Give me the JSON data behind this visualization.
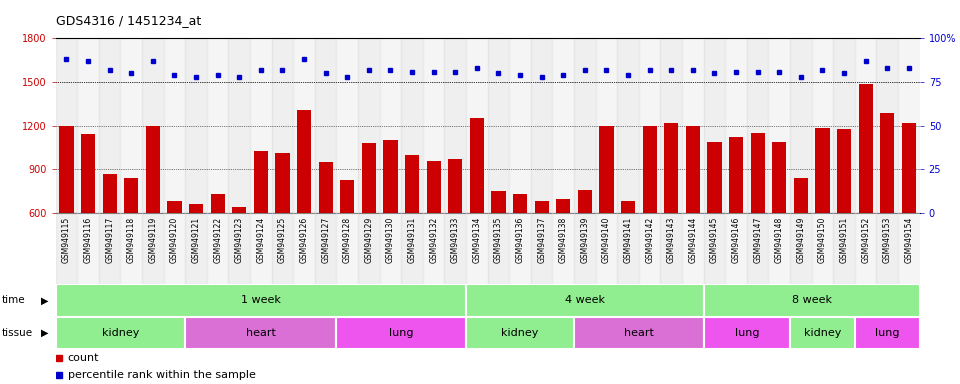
{
  "title": "GDS4316 / 1451234_at",
  "samples": [
    "GSM949115",
    "GSM949116",
    "GSM949117",
    "GSM949118",
    "GSM949119",
    "GSM949120",
    "GSM949121",
    "GSM949122",
    "GSM949123",
    "GSM949124",
    "GSM949125",
    "GSM949126",
    "GSM949127",
    "GSM949128",
    "GSM949129",
    "GSM949130",
    "GSM949131",
    "GSM949132",
    "GSM949133",
    "GSM949134",
    "GSM949135",
    "GSM949136",
    "GSM949137",
    "GSM949138",
    "GSM949139",
    "GSM949140",
    "GSM949141",
    "GSM949142",
    "GSM949143",
    "GSM949144",
    "GSM949145",
    "GSM949146",
    "GSM949147",
    "GSM949148",
    "GSM949149",
    "GSM949150",
    "GSM949151",
    "GSM949152",
    "GSM949153",
    "GSM949154"
  ],
  "counts": [
    1200,
    1140,
    870,
    840,
    1195,
    680,
    665,
    730,
    640,
    1030,
    1010,
    1310,
    950,
    830,
    1080,
    1100,
    1000,
    960,
    970,
    1250,
    750,
    730,
    680,
    700,
    760,
    1200,
    680,
    1200,
    1220,
    1195,
    1090,
    1120,
    1150,
    1090,
    840,
    1185,
    1175,
    1490,
    1290,
    1220
  ],
  "percentiles": [
    88,
    87,
    82,
    80,
    87,
    79,
    78,
    79,
    78,
    82,
    82,
    88,
    80,
    78,
    82,
    82,
    81,
    81,
    81,
    83,
    80,
    79,
    78,
    79,
    82,
    82,
    79,
    82,
    82,
    82,
    80,
    81,
    81,
    81,
    78,
    82,
    80,
    87,
    83,
    83
  ],
  "ylim_left": [
    600,
    1800
  ],
  "ylim_right": [
    0,
    100
  ],
  "left_ticks": [
    600,
    900,
    1200,
    1500,
    1800
  ],
  "right_ticks": [
    0,
    25,
    50,
    75,
    100
  ],
  "bar_color": "#CC0000",
  "dot_color": "#0000CC",
  "time_groups": [
    {
      "label": "1 week",
      "start": 0,
      "end": 19
    },
    {
      "label": "4 week",
      "start": 19,
      "end": 30
    },
    {
      "label": "8 week",
      "start": 30,
      "end": 40
    }
  ],
  "tissue_groups": [
    {
      "label": "kidney",
      "start": 0,
      "end": 6,
      "color": "#90EE90"
    },
    {
      "label": "heart",
      "start": 6,
      "end": 13,
      "color": "#DA70D6"
    },
    {
      "label": "lung",
      "start": 13,
      "end": 19,
      "color": "#EE55EE"
    },
    {
      "label": "kidney",
      "start": 19,
      "end": 24,
      "color": "#90EE90"
    },
    {
      "label": "heart",
      "start": 24,
      "end": 30,
      "color": "#DA70D6"
    },
    {
      "label": "lung",
      "start": 30,
      "end": 34,
      "color": "#EE55EE"
    },
    {
      "label": "kidney",
      "start": 34,
      "end": 37,
      "color": "#90EE90"
    },
    {
      "label": "lung",
      "start": 37,
      "end": 40,
      "color": "#EE55EE"
    }
  ],
  "time_color": "#90EE90",
  "legend_count_color": "#CC0000",
  "legend_dot_color": "#0000CC"
}
